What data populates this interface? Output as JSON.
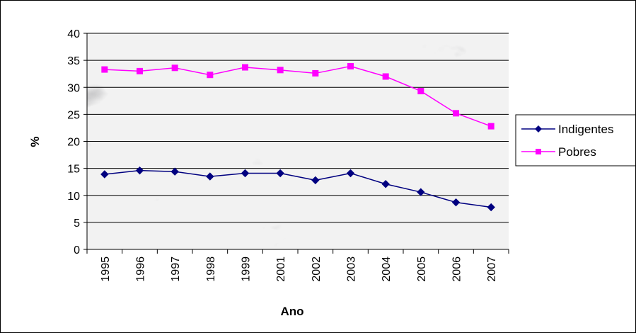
{
  "chart_data": {
    "type": "line",
    "categories": [
      "1995",
      "1996",
      "1997",
      "1998",
      "1999",
      "2001",
      "2002",
      "2003",
      "2004",
      "2005",
      "2006",
      "2007"
    ],
    "series": [
      {
        "name": "Indigentes",
        "values": [
          13.9,
          14.6,
          14.4,
          13.5,
          14.1,
          14.1,
          12.8,
          14.1,
          12.1,
          10.6,
          8.7,
          7.8
        ],
        "color": "#000080",
        "marker": "diamond"
      },
      {
        "name": "Pobres",
        "values": [
          33.3,
          33.0,
          33.6,
          32.3,
          33.7,
          33.2,
          32.6,
          33.9,
          32.0,
          29.3,
          25.2,
          22.8
        ],
        "color": "#ff00ff",
        "marker": "square"
      }
    ],
    "xlabel": "Ano",
    "ylabel": "%",
    "ylim": [
      0,
      40
    ],
    "yticks": [
      "0",
      "5",
      "10",
      "15",
      "20",
      "25",
      "30",
      "35",
      "40"
    ],
    "grid": true,
    "legend_position": "right",
    "plot_background": "marble-gray-texture"
  }
}
